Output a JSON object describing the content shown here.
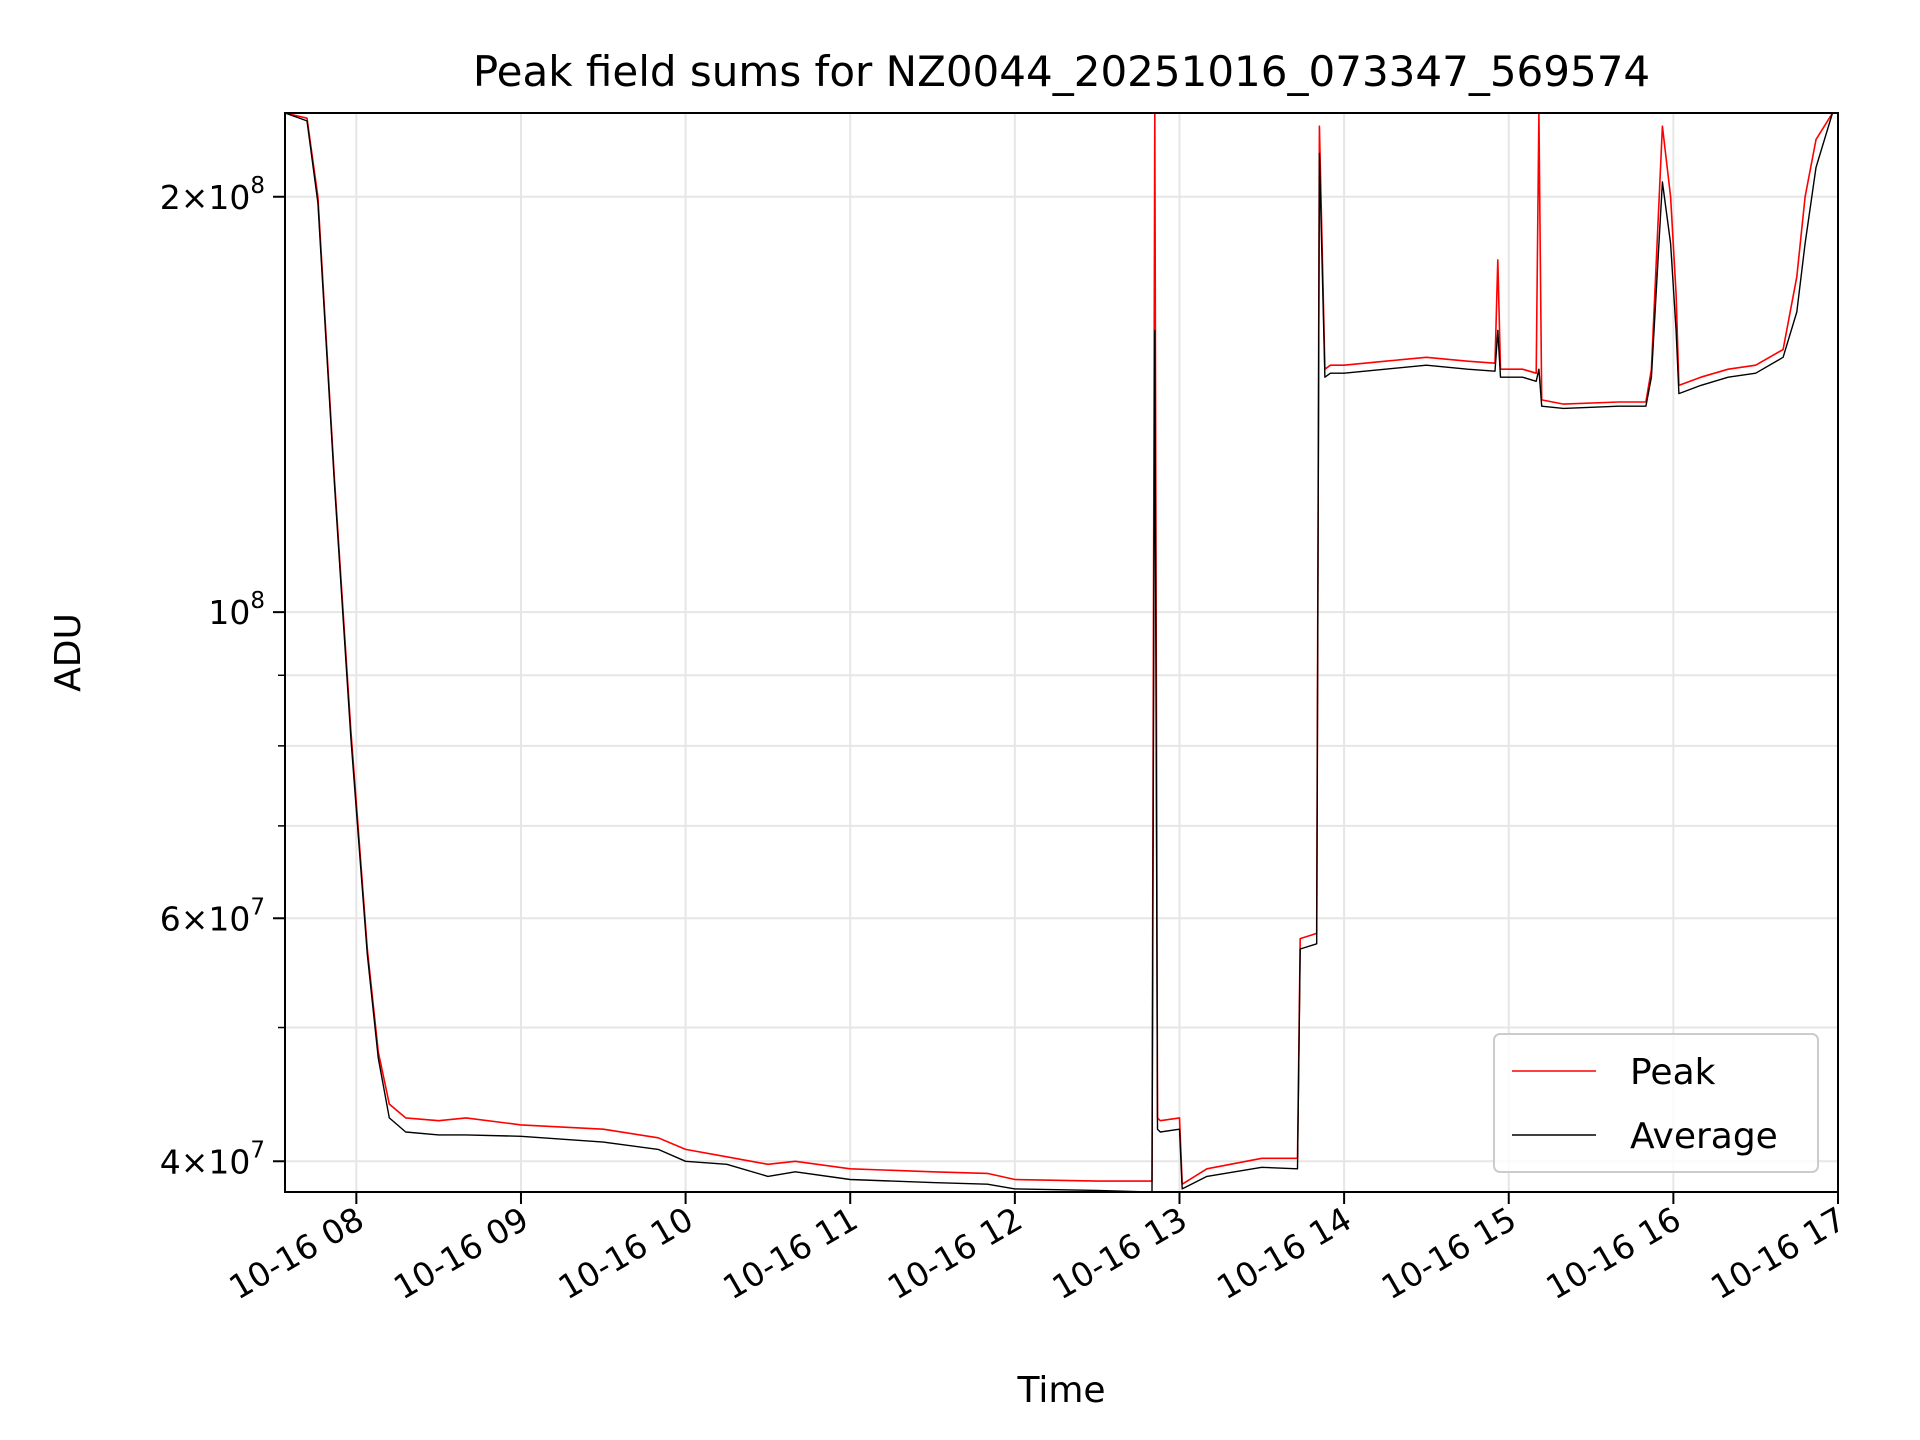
{
  "chart_data": {
    "type": "line",
    "title": "Peak field sums for NZ0044_20251016_073347_569574",
    "xlabel": "Time",
    "ylabel": "ADU",
    "x_scale": "time",
    "y_scale": "log",
    "xlim": [
      "2025-10-16 07:34",
      "2025-10-16 17:00"
    ],
    "ylim": [
      38000000,
      230000000
    ],
    "x_ticks": [
      {
        "value": "2025-10-16 08:00",
        "label": "10-16 08"
      },
      {
        "value": "2025-10-16 09:00",
        "label": "10-16 09"
      },
      {
        "value": "2025-10-16 10:00",
        "label": "10-16 10"
      },
      {
        "value": "2025-10-16 11:00",
        "label": "10-16 11"
      },
      {
        "value": "2025-10-16 12:00",
        "label": "10-16 12"
      },
      {
        "value": "2025-10-16 13:00",
        "label": "10-16 13"
      },
      {
        "value": "2025-10-16 14:00",
        "label": "10-16 14"
      },
      {
        "value": "2025-10-16 15:00",
        "label": "10-16 15"
      },
      {
        "value": "2025-10-16 16:00",
        "label": "10-16 16"
      },
      {
        "value": "2025-10-16 17:00",
        "label": "10-16 17"
      }
    ],
    "y_major_ticks": [
      {
        "value": 40000000,
        "mant": "4",
        "exp": "7"
      },
      {
        "value": 60000000,
        "mant": "6",
        "exp": "7"
      },
      {
        "value": 100000000,
        "mant": "",
        "exp": "8"
      },
      {
        "value": 200000000,
        "mant": "2",
        "exp": "8"
      }
    ],
    "y_minor_ticks": [
      50000000,
      70000000,
      80000000,
      90000000
    ],
    "grid": true,
    "legend": {
      "position": "bottom-right"
    },
    "series": [
      {
        "name": "Peak",
        "color": "#ff0000",
        "x": [
          "2025-10-16 07:34",
          "2025-10-16 07:42",
          "2025-10-16 07:46",
          "2025-10-16 07:52",
          "2025-10-16 07:58",
          "2025-10-16 08:04",
          "2025-10-16 08:08",
          "2025-10-16 08:12",
          "2025-10-16 08:18",
          "2025-10-16 08:30",
          "2025-10-16 08:40",
          "2025-10-16 09:00",
          "2025-10-16 09:30",
          "2025-10-16 09:50",
          "2025-10-16 10:00",
          "2025-10-16 10:15",
          "2025-10-16 10:30",
          "2025-10-16 10:40",
          "2025-10-16 11:00",
          "2025-10-16 11:30",
          "2025-10-16 11:50",
          "2025-10-16 12:00",
          "2025-10-16 12:30",
          "2025-10-16 12:50",
          "2025-10-16 12:51",
          "2025-10-16 12:52",
          "2025-10-16 12:53",
          "2025-10-16 13:00",
          "2025-10-16 13:01",
          "2025-10-16 13:10",
          "2025-10-16 13:30",
          "2025-10-16 13:43",
          "2025-10-16 13:44",
          "2025-10-16 13:50",
          "2025-10-16 13:51",
          "2025-10-16 13:53",
          "2025-10-16 13:55",
          "2025-10-16 14:00",
          "2025-10-16 14:15",
          "2025-10-16 14:30",
          "2025-10-16 14:45",
          "2025-10-16 14:55",
          "2025-10-16 14:56",
          "2025-10-16 14:57",
          "2025-10-16 15:05",
          "2025-10-16 15:10",
          "2025-10-16 15:11",
          "2025-10-16 15:12",
          "2025-10-16 15:20",
          "2025-10-16 15:40",
          "2025-10-16 15:50",
          "2025-10-16 15:52",
          "2025-10-16 15:56",
          "2025-10-16 15:59",
          "2025-10-16 16:01",
          "2025-10-16 16:02",
          "2025-10-16 16:10",
          "2025-10-16 16:20",
          "2025-10-16 16:30",
          "2025-10-16 16:40",
          "2025-10-16 16:45",
          "2025-10-16 16:48",
          "2025-10-16 16:52",
          "2025-10-16 16:58",
          "2025-10-16 17:00"
        ],
        "y": [
          230000000,
          228000000,
          200000000,
          125000000,
          82000000,
          57000000,
          48000000,
          44000000,
          43000000,
          42800000,
          43000000,
          42500000,
          42200000,
          41600000,
          40800000,
          40300000,
          39800000,
          40000000,
          39500000,
          39300000,
          39200000,
          38800000,
          38700000,
          38700000,
          230000000,
          43000000,
          42800000,
          43000000,
          38500000,
          39500000,
          40200000,
          40200000,
          58000000,
          58500000,
          225000000,
          150000000,
          151000000,
          151000000,
          152000000,
          153000000,
          152000000,
          151500000,
          180000000,
          150000000,
          150000000,
          149000000,
          230000000,
          142500000,
          141500000,
          142000000,
          142000000,
          150000000,
          225000000,
          200000000,
          170000000,
          146000000,
          148000000,
          150000000,
          151000000,
          155000000,
          175000000,
          200000000,
          220000000,
          230000000,
          230000000
        ]
      },
      {
        "name": "Average",
        "color": "#000000",
        "x": [
          "2025-10-16 07:34",
          "2025-10-16 07:42",
          "2025-10-16 07:46",
          "2025-10-16 07:52",
          "2025-10-16 07:58",
          "2025-10-16 08:04",
          "2025-10-16 08:08",
          "2025-10-16 08:12",
          "2025-10-16 08:18",
          "2025-10-16 08:30",
          "2025-10-16 08:40",
          "2025-10-16 09:00",
          "2025-10-16 09:30",
          "2025-10-16 09:50",
          "2025-10-16 10:00",
          "2025-10-16 10:15",
          "2025-10-16 10:30",
          "2025-10-16 10:40",
          "2025-10-16 11:00",
          "2025-10-16 11:30",
          "2025-10-16 11:50",
          "2025-10-16 12:00",
          "2025-10-16 12:30",
          "2025-10-16 12:50",
          "2025-10-16 12:51",
          "2025-10-16 12:52",
          "2025-10-16 12:53",
          "2025-10-16 13:00",
          "2025-10-16 13:01",
          "2025-10-16 13:10",
          "2025-10-16 13:30",
          "2025-10-16 13:43",
          "2025-10-16 13:44",
          "2025-10-16 13:50",
          "2025-10-16 13:51",
          "2025-10-16 13:53",
          "2025-10-16 13:55",
          "2025-10-16 14:00",
          "2025-10-16 14:15",
          "2025-10-16 14:30",
          "2025-10-16 14:45",
          "2025-10-16 14:55",
          "2025-10-16 14:56",
          "2025-10-16 14:57",
          "2025-10-16 15:05",
          "2025-10-16 15:10",
          "2025-10-16 15:11",
          "2025-10-16 15:12",
          "2025-10-16 15:20",
          "2025-10-16 15:40",
          "2025-10-16 15:50",
          "2025-10-16 15:52",
          "2025-10-16 15:56",
          "2025-10-16 15:59",
          "2025-10-16 16:01",
          "2025-10-16 16:02",
          "2025-10-16 16:10",
          "2025-10-16 16:20",
          "2025-10-16 16:30",
          "2025-10-16 16:40",
          "2025-10-16 16:45",
          "2025-10-16 16:48",
          "2025-10-16 16:52",
          "2025-10-16 16:58",
          "2025-10-16 17:00"
        ],
        "y": [
          230000000,
          227000000,
          198000000,
          124000000,
          81000000,
          56500000,
          47500000,
          43000000,
          42000000,
          41800000,
          41800000,
          41700000,
          41300000,
          40800000,
          40000000,
          39800000,
          39000000,
          39300000,
          38800000,
          38600000,
          38500000,
          38200000,
          38100000,
          38000000,
          160000000,
          42200000,
          42000000,
          42200000,
          38200000,
          39000000,
          39600000,
          39500000,
          57000000,
          57500000,
          215000000,
          148000000,
          149000000,
          149000000,
          150000000,
          151000000,
          150000000,
          149500000,
          160000000,
          148000000,
          148000000,
          147000000,
          150000000,
          141000000,
          140500000,
          141000000,
          141000000,
          148000000,
          205000000,
          185000000,
          160000000,
          144000000,
          146000000,
          148000000,
          149000000,
          153000000,
          165000000,
          185000000,
          210000000,
          230000000,
          230000000
        ]
      }
    ]
  }
}
